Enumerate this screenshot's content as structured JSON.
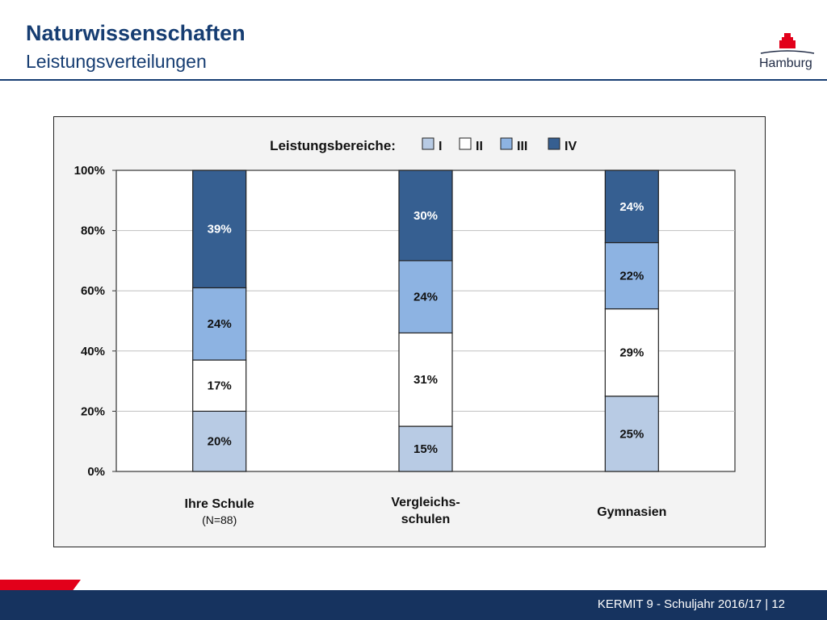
{
  "header": {
    "title": "Naturwissenschaften",
    "subtitle": "Leistungsverteilungen",
    "logo_text": "Hamburg"
  },
  "footer": {
    "text": "KERMIT 9 - Schuljahr 2016/17 | 12"
  },
  "colors": {
    "I": "#b8cbe4",
    "II": "#ffffff",
    "III": "#8db3e2",
    "IV": "#365f91",
    "brand": "#163d72",
    "accent_red": "#e2001a"
  },
  "chart_data": {
    "type": "bar",
    "stacked": true,
    "legend_title": "Leistungsbereiche:",
    "legend_position": "top",
    "categories": [
      "Ihre Schule",
      "Vergleichs-\nschulen",
      "Gymnasien"
    ],
    "category_sublabels": [
      "(N=88)",
      "",
      ""
    ],
    "series": [
      {
        "name": "I",
        "values": [
          20,
          15,
          25
        ],
        "labels": [
          "20%",
          "15%",
          "25%"
        ]
      },
      {
        "name": "II",
        "values": [
          17,
          31,
          29
        ],
        "labels": [
          "17%",
          "31%",
          "29%"
        ]
      },
      {
        "name": "III",
        "values": [
          24,
          24,
          22
        ],
        "labels": [
          "24%",
          "24%",
          "22%"
        ]
      },
      {
        "name": "IV",
        "values": [
          39,
          30,
          24
        ],
        "labels": [
          "39%",
          "30%",
          "24%"
        ]
      }
    ],
    "ylim": [
      0,
      100
    ],
    "yticks": [
      "0%",
      "20%",
      "40%",
      "60%",
      "80%",
      "100%"
    ],
    "grid": true
  }
}
